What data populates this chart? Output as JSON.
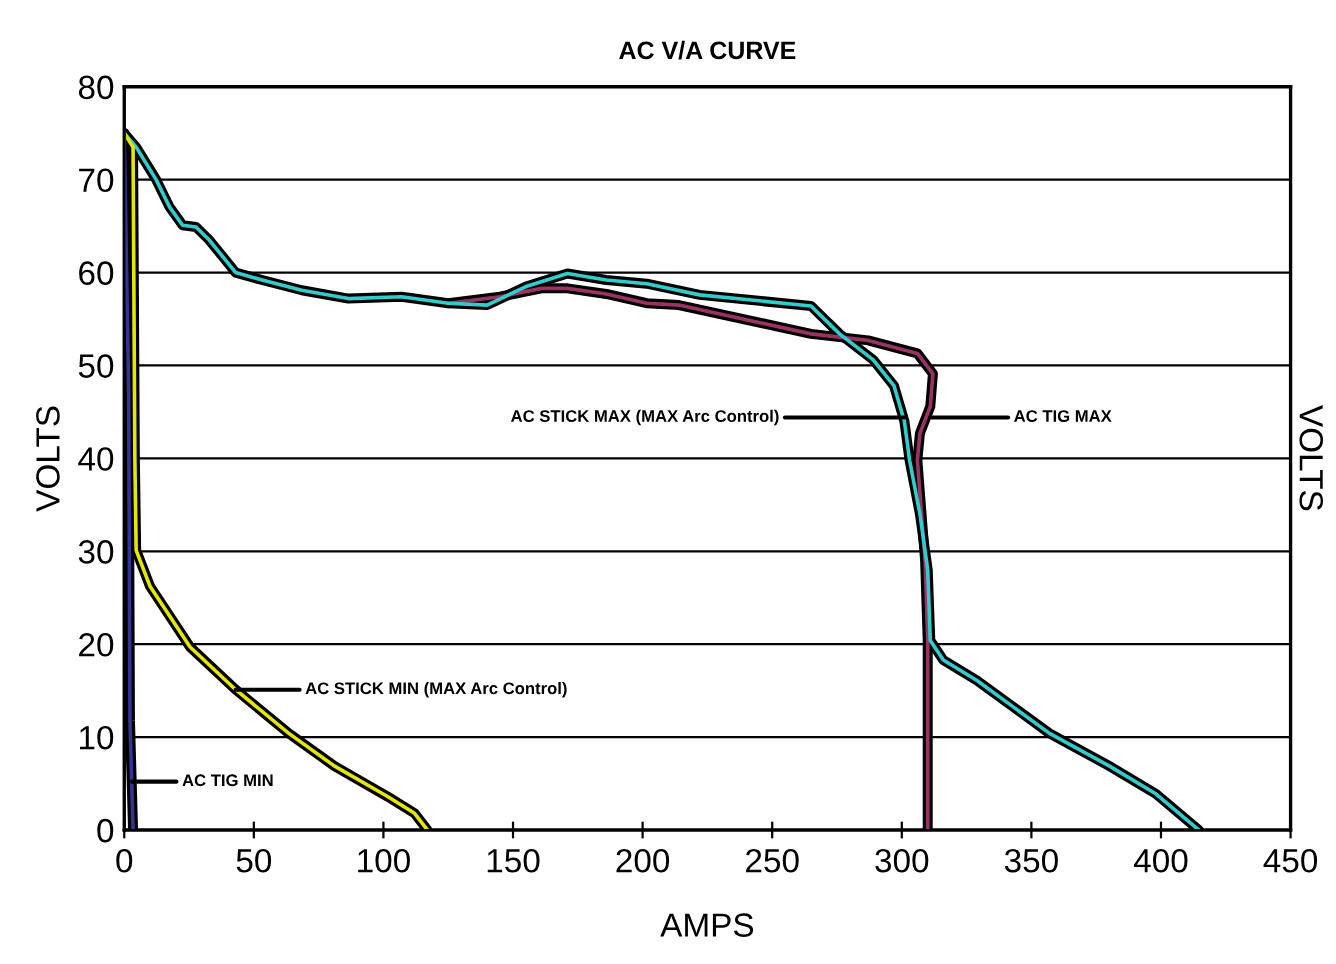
{
  "chart_data": {
    "type": "line",
    "title": "AC V/A CURVE",
    "xlabel": "AMPS",
    "ylabel": "VOLTS",
    "y2label": "VOLTS",
    "xlim": [
      0,
      450
    ],
    "xticks": [
      0,
      50,
      100,
      150,
      200,
      250,
      300,
      350,
      400,
      450
    ],
    "ylim": [
      0,
      80
    ],
    "yticks": [
      0,
      10,
      20,
      30,
      40,
      50,
      60,
      70,
      80
    ],
    "grid": "y",
    "legend": false,
    "marker": "none",
    "line_style": "solid",
    "series": [
      {
        "color": "#993366",
        "x": [
          125,
          145,
          161,
          171,
          186,
          201.6,
          214,
          265,
          287,
          306,
          312,
          311,
          307,
          306,
          309,
          310,
          310
        ],
        "values": [
          56.7,
          57.4,
          58.3,
          58.3,
          57.7,
          56.7,
          56.5,
          53.4,
          52.7,
          51.3,
          49.1,
          45.6,
          42.7,
          39.8,
          29,
          20.4,
          0
        ]
      },
      {
        "color": "#33cccc",
        "x": [
          0,
          4.6,
          12.3,
          17.4,
          22.5,
          27.7,
          32.8,
          43,
          53.2,
          68.5,
          86.5,
          107,
          125,
          140,
          155,
          171,
          186,
          201.6,
          222,
          265,
          276,
          289,
          297,
          301,
          303,
          307,
          310,
          311,
          316,
          329,
          357,
          380,
          398,
          414.6
        ],
        "values": [
          75,
          73.5,
          70,
          67.1,
          65.1,
          64.9,
          63.5,
          60,
          59.2,
          58.1,
          57.2,
          57.4,
          56.7,
          56.5,
          58.5,
          59.9,
          59.2,
          58.8,
          57.6,
          56.4,
          53.4,
          50.6,
          47.8,
          44,
          39.8,
          34,
          28,
          20.4,
          18.3,
          16.1,
          10.4,
          6.9,
          3.9,
          0
        ]
      },
      {
        "color": "#e6e600",
        "x": [
          0,
          3.4,
          4.1,
          4.6,
          10,
          25.4,
          43,
          63.5,
          81,
          101.6,
          112,
          117
        ],
        "values": [
          75,
          73.5,
          39.8,
          30.1,
          26.2,
          19.7,
          15.1,
          10.4,
          6.9,
          3.6,
          1.8,
          0
        ]
      },
      {
        "color": "#333399",
        "x": [
          0,
          1.7,
          2.2,
          3.4
        ],
        "values": [
          75,
          47,
          11.8,
          0
        ]
      }
    ],
    "annotations": [
      {
        "text": "AC STICK MAX (MAX Arc Control)",
        "x": 301,
        "y": 44.4
      },
      {
        "text": "AC TIG MAX",
        "x": 311,
        "y": 44.4
      },
      {
        "text": "AC STICK MIN (MAX Arc Control)",
        "x": 43,
        "y": 15.1
      },
      {
        "text": "AC TIG MIN",
        "x": 3,
        "y": 5.2
      }
    ]
  }
}
